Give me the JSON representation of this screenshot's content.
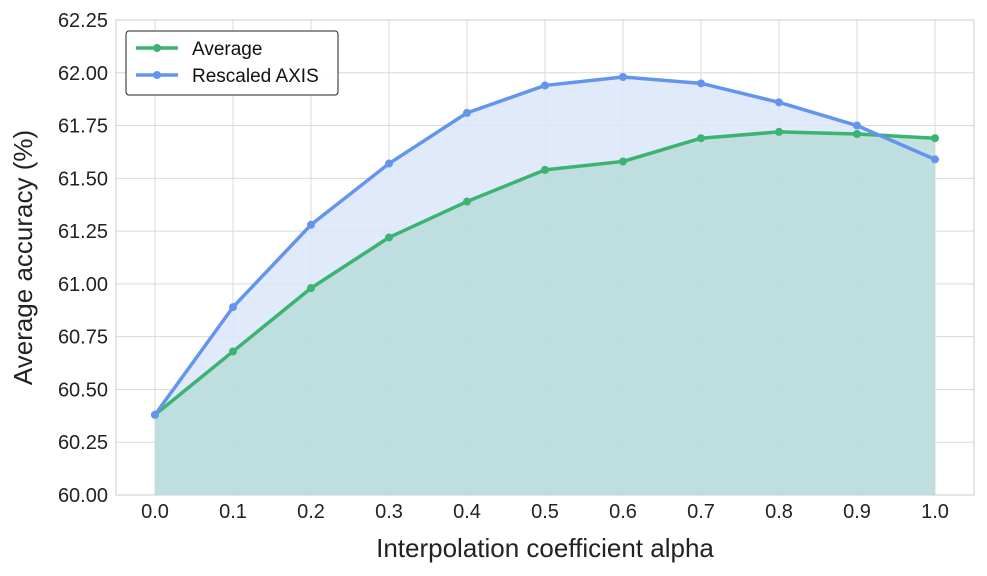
{
  "chart_data": {
    "type": "line",
    "title": "",
    "xlabel": "Interpolation coefficient alpha",
    "ylabel": "Average accuracy (%)",
    "x": [
      0.0,
      0.1,
      0.2,
      0.3,
      0.4,
      0.5,
      0.6,
      0.7,
      0.8,
      0.9,
      1.0
    ],
    "x_tick_labels": [
      "0.0",
      "0.1",
      "0.2",
      "0.3",
      "0.4",
      "0.5",
      "0.6",
      "0.7",
      "0.8",
      "0.9",
      "1.0"
    ],
    "xlim": [
      -0.05,
      1.05
    ],
    "ylim": [
      60.0,
      62.25
    ],
    "y_ticks": [
      60.0,
      60.25,
      60.5,
      60.75,
      61.0,
      61.25,
      61.5,
      61.75,
      62.0,
      62.25
    ],
    "y_tick_labels": [
      "60.00",
      "60.25",
      "60.50",
      "60.75",
      "61.00",
      "61.25",
      "61.50",
      "61.75",
      "62.00",
      "62.25"
    ],
    "grid": true,
    "legend_position": "top-left",
    "series": [
      {
        "name": "Average",
        "color": "#3cb371",
        "fill": "#b8dcd9",
        "values": [
          60.38,
          60.68,
          60.98,
          61.22,
          61.39,
          61.54,
          61.58,
          61.69,
          61.72,
          61.71,
          61.69
        ]
      },
      {
        "name": "Rescaled AXIS",
        "color": "#6495ed",
        "fill": "#dbe6fa",
        "values": [
          60.38,
          60.89,
          61.28,
          61.57,
          61.81,
          61.94,
          61.98,
          61.95,
          61.86,
          61.75,
          61.59
        ]
      }
    ]
  }
}
